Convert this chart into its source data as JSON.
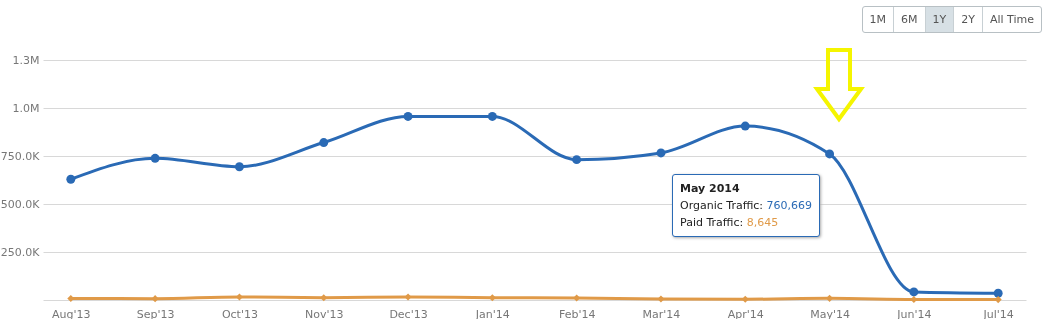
{
  "chart_data": {
    "type": "line",
    "categories": [
      "Aug'13",
      "Sep'13",
      "Oct'13",
      "Nov'13",
      "Dec'13",
      "Jan'14",
      "Feb'14",
      "Mar'14",
      "Apr'14",
      "May'14",
      "Jun'14",
      "Jul'14"
    ],
    "series": [
      {
        "color": "#2a6ab5",
        "marker": "circle",
        "values": [
          629000,
          738000,
          694000,
          820000,
          956000,
          956000,
          731000,
          766000,
          906000,
          760669,
          42000,
          35000
        ]
      },
      {
        "color": "#e09a48",
        "marker": "diamond",
        "values": [
          8000,
          7000,
          16000,
          12000,
          16000,
          12000,
          10000,
          5000,
          4000,
          8645,
          3000,
          2000
        ]
      }
    ],
    "ylim": [
      0,
      1250000
    ],
    "yticks": [
      {
        "value": 0,
        "label": null
      },
      {
        "value": 250000,
        "label": "250.0K"
      },
      {
        "value": 500000,
        "label": "500.0K"
      },
      {
        "value": 750000,
        "label": "750.0K"
      },
      {
        "value": 1000000,
        "label": "1.0M"
      },
      {
        "value": 1250000,
        "label": "1.3M"
      }
    ],
    "grid": "y",
    "annotations": [
      "May 2014",
      "Organic Traffic: 760,669",
      "Paid Traffic: 8,645",
      "1M",
      "6M",
      "1Y",
      "2Y",
      "All Time"
    ]
  }
}
